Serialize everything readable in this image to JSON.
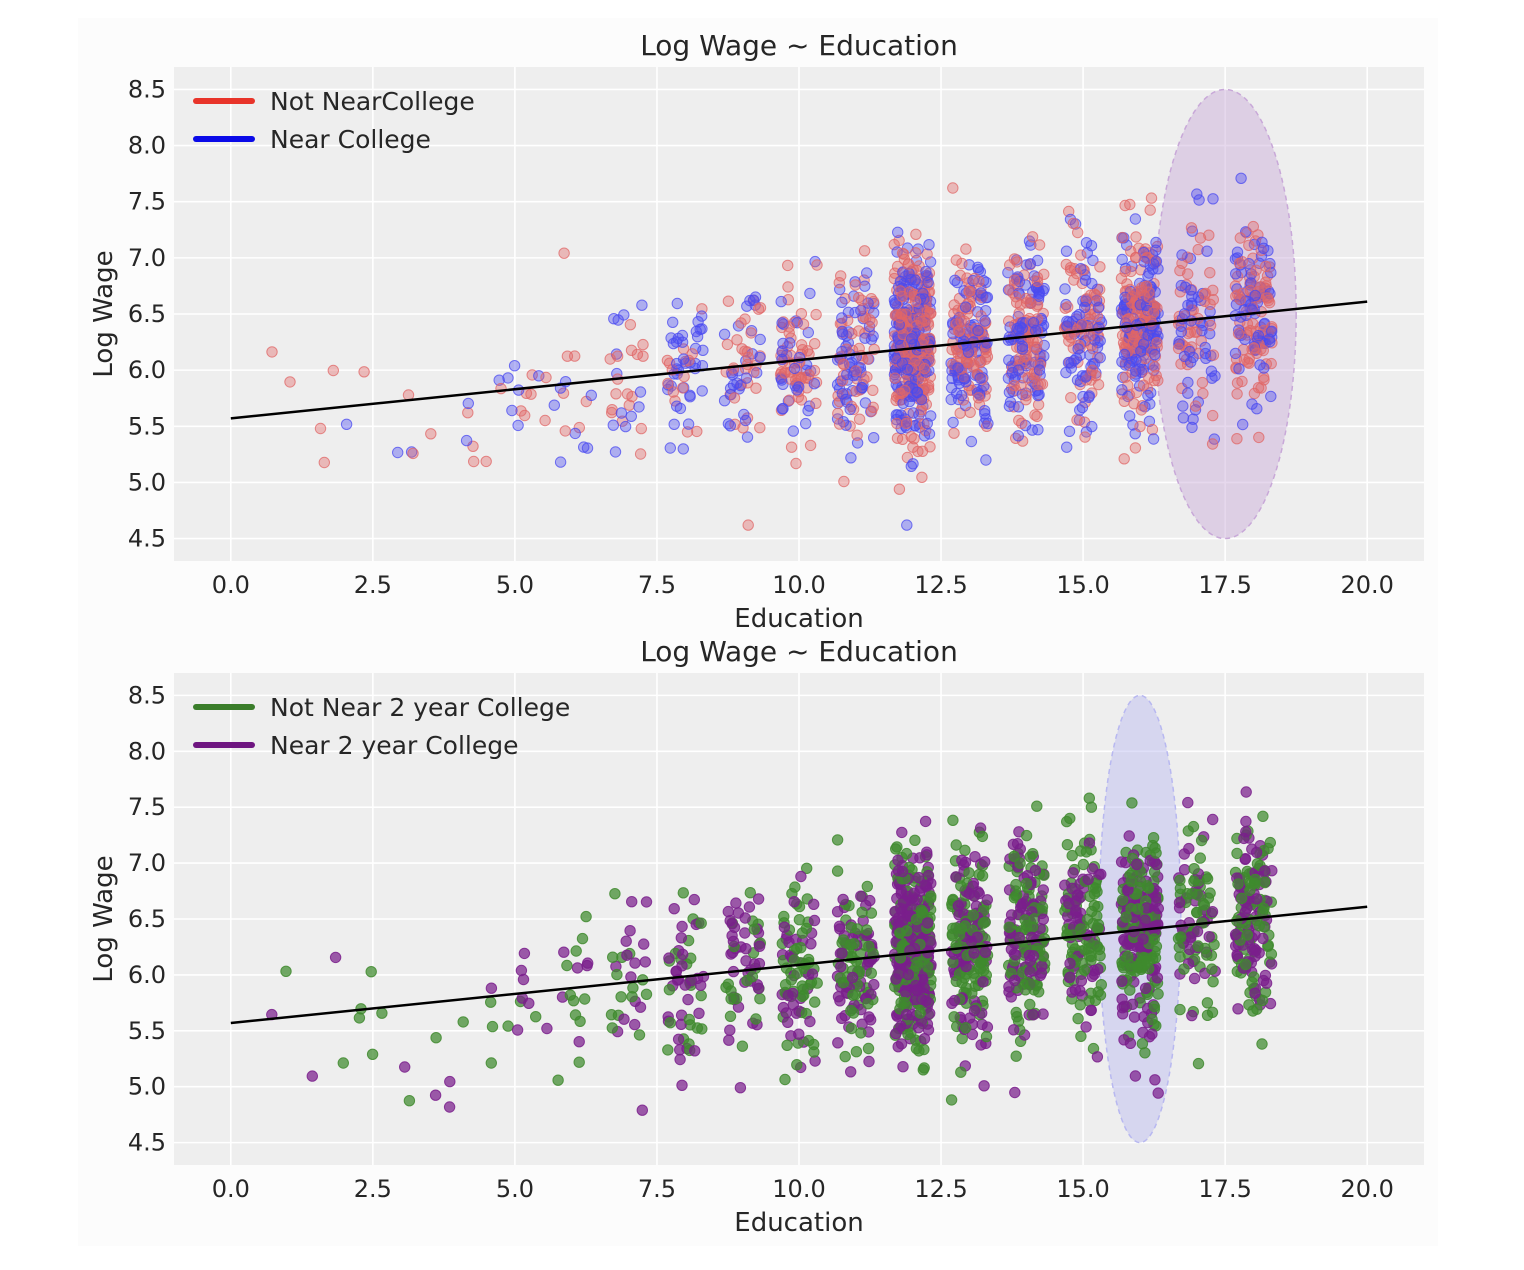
{
  "chart_data": [
    {
      "type": "scatter",
      "title": "Log Wage ~ Education",
      "xlabel": "Education",
      "ylabel": "Log Wage",
      "xlim": [
        -1,
        21
      ],
      "ylim": [
        4.3,
        8.7
      ],
      "xticks": [
        0.0,
        2.5,
        5.0,
        7.5,
        10.0,
        12.5,
        15.0,
        17.5,
        20.0
      ],
      "xtick_labels": [
        "0.0",
        "2.5",
        "5.0",
        "7.5",
        "10.0",
        "12.5",
        "15.0",
        "17.5",
        "20.0"
      ],
      "yticks": [
        4.5,
        5.0,
        5.5,
        6.0,
        6.5,
        7.0,
        7.5,
        8.0,
        8.5
      ],
      "ytick_labels": [
        "4.5",
        "5.0",
        "5.5",
        "6.0",
        "6.5",
        "7.0",
        "7.5",
        "8.0",
        "8.5"
      ],
      "grid": true,
      "legend_position": "top-left",
      "series": [
        {
          "name": "Not NearCollege",
          "color": "#e8342a",
          "point_color": "#e06666"
        },
        {
          "name": "Near College",
          "color": "#0a0ae8",
          "point_color": "#4a4af0"
        }
      ],
      "fit_line": {
        "x": [
          0.0,
          20.0
        ],
        "y": [
          5.57,
          6.61
        ],
        "color": "#000000"
      },
      "highlight_ellipse": {
        "cx": 17.5,
        "cy": 6.5,
        "rx": 1.25,
        "ry": 2.0,
        "color": "#c8a8d8"
      },
      "education_levels": [
        1,
        2,
        3,
        4,
        5,
        6,
        7,
        8,
        9,
        10,
        11,
        12,
        13,
        14,
        15,
        16,
        17,
        18
      ],
      "groups": [
        {
          "x": 1,
          "n": 3,
          "mean": 5.8,
          "sd": 0.45
        },
        {
          "x": 2,
          "n": 4,
          "mean": 5.6,
          "sd": 0.3
        },
        {
          "x": 3,
          "n": 5,
          "mean": 5.5,
          "sd": 0.35
        },
        {
          "x": 4,
          "n": 6,
          "mean": 5.5,
          "sd": 0.4
        },
        {
          "x": 5,
          "n": 12,
          "mean": 5.75,
          "sd": 0.2
        },
        {
          "x": 6,
          "n": 18,
          "mean": 5.85,
          "sd": 0.4
        },
        {
          "x": 7,
          "n": 30,
          "mean": 5.95,
          "sd": 0.4
        },
        {
          "x": 8,
          "n": 55,
          "mean": 6.0,
          "sd": 0.4
        },
        {
          "x": 9,
          "n": 60,
          "mean": 6.05,
          "sd": 0.4
        },
        {
          "x": 10,
          "n": 90,
          "mean": 6.05,
          "sd": 0.38
        },
        {
          "x": 11,
          "n": 120,
          "mean": 6.1,
          "sd": 0.38
        },
        {
          "x": 12,
          "n": 420,
          "mean": 6.2,
          "sd": 0.42
        },
        {
          "x": 13,
          "n": 200,
          "mean": 6.25,
          "sd": 0.4
        },
        {
          "x": 14,
          "n": 190,
          "mean": 6.32,
          "sd": 0.4
        },
        {
          "x": 15,
          "n": 150,
          "mean": 6.38,
          "sd": 0.4
        },
        {
          "x": 16,
          "n": 270,
          "mean": 6.42,
          "sd": 0.42
        },
        {
          "x": 17,
          "n": 100,
          "mean": 6.45,
          "sd": 0.45
        },
        {
          "x": 18,
          "n": 160,
          "mean": 6.5,
          "sd": 0.42
        }
      ]
    },
    {
      "type": "scatter",
      "title": "Log Wage ~ Education",
      "xlabel": "Education",
      "ylabel": "Log Wage",
      "xlim": [
        -1,
        21
      ],
      "ylim": [
        4.3,
        8.7
      ],
      "xticks": [
        0.0,
        2.5,
        5.0,
        7.5,
        10.0,
        12.5,
        15.0,
        17.5,
        20.0
      ],
      "xtick_labels": [
        "0.0",
        "2.5",
        "5.0",
        "7.5",
        "10.0",
        "12.5",
        "15.0",
        "17.5",
        "20.0"
      ],
      "yticks": [
        4.5,
        5.0,
        5.5,
        6.0,
        6.5,
        7.0,
        7.5,
        8.0,
        8.5
      ],
      "ytick_labels": [
        "4.5",
        "5.0",
        "5.5",
        "6.0",
        "6.5",
        "7.0",
        "7.5",
        "8.0",
        "8.5"
      ],
      "grid": true,
      "legend_position": "top-left",
      "series": [
        {
          "name": "Not Near 2 year College",
          "color": "#3a7d2a",
          "point_color": "#3f8a2e"
        },
        {
          "name": "Near 2 year College",
          "color": "#6e1580",
          "point_color": "#7a1f8c"
        }
      ],
      "fit_line": {
        "x": [
          0.0,
          20.0
        ],
        "y": [
          5.57,
          6.61
        ],
        "color": "#000000"
      },
      "highlight_ellipse": {
        "cx": 16.0,
        "cy": 6.5,
        "rx": 0.72,
        "ry": 2.0,
        "color": "#b8b8f0"
      },
      "education_levels": [
        1,
        2,
        3,
        4,
        5,
        6,
        7,
        8,
        9,
        10,
        11,
        12,
        13,
        14,
        15,
        16,
        17,
        18
      ],
      "groups": [
        {
          "x": 1,
          "n": 3,
          "mean": 5.8,
          "sd": 0.45
        },
        {
          "x": 2,
          "n": 4,
          "mean": 5.6,
          "sd": 0.3
        },
        {
          "x": 3,
          "n": 5,
          "mean": 5.5,
          "sd": 0.35
        },
        {
          "x": 4,
          "n": 6,
          "mean": 5.5,
          "sd": 0.4
        },
        {
          "x": 5,
          "n": 12,
          "mean": 5.75,
          "sd": 0.2
        },
        {
          "x": 6,
          "n": 18,
          "mean": 5.85,
          "sd": 0.4
        },
        {
          "x": 7,
          "n": 30,
          "mean": 5.95,
          "sd": 0.4
        },
        {
          "x": 8,
          "n": 55,
          "mean": 6.0,
          "sd": 0.4
        },
        {
          "x": 9,
          "n": 60,
          "mean": 6.05,
          "sd": 0.4
        },
        {
          "x": 10,
          "n": 90,
          "mean": 6.05,
          "sd": 0.38
        },
        {
          "x": 11,
          "n": 120,
          "mean": 6.1,
          "sd": 0.38
        },
        {
          "x": 12,
          "n": 420,
          "mean": 6.2,
          "sd": 0.42
        },
        {
          "x": 13,
          "n": 200,
          "mean": 6.25,
          "sd": 0.4
        },
        {
          "x": 14,
          "n": 190,
          "mean": 6.32,
          "sd": 0.4
        },
        {
          "x": 15,
          "n": 150,
          "mean": 6.38,
          "sd": 0.4
        },
        {
          "x": 16,
          "n": 270,
          "mean": 6.42,
          "sd": 0.42
        },
        {
          "x": 17,
          "n": 100,
          "mean": 6.45,
          "sd": 0.45
        },
        {
          "x": 18,
          "n": 160,
          "mean": 6.5,
          "sd": 0.42
        }
      ]
    }
  ]
}
